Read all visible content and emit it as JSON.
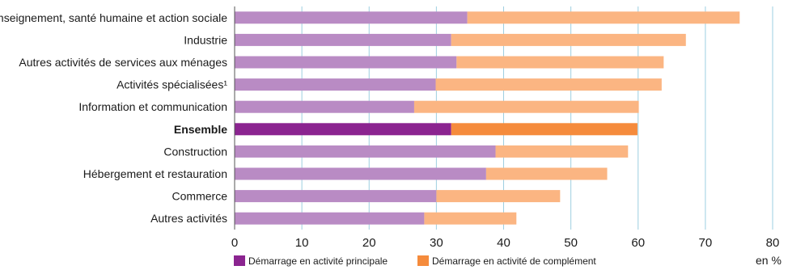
{
  "chart_data": {
    "type": "bar",
    "orientation": "horizontal",
    "stacked": true,
    "categories": [
      "Enseignement, santé humaine et action sociale",
      "Industrie",
      "Autres activités de services aux ménages",
      "Activités spécialisées¹",
      "Information et communication",
      "Ensemble",
      "Construction",
      "Hébergement et restauration",
      "Commerce",
      "Autres activités"
    ],
    "highlight_category": "Ensemble",
    "series": [
      {
        "name": "Démarrage en activité principale",
        "values": [
          34.6,
          32.2,
          33.0,
          29.9,
          26.7,
          32.2,
          38.8,
          37.4,
          30.0,
          28.2
        ],
        "color": "#b98bc4",
        "highlight_color": "#8b2490"
      },
      {
        "name": "Démarrage en activité de complément",
        "values": [
          40.5,
          34.9,
          30.8,
          33.6,
          33.4,
          27.7,
          19.7,
          18.0,
          18.4,
          13.7
        ],
        "color": "#fbb582",
        "highlight_color": "#f58b3c"
      }
    ],
    "xlim": [
      0,
      80
    ],
    "xticks": [
      0,
      10,
      20,
      30,
      40,
      50,
      60,
      70,
      80
    ],
    "unit_label": "en %",
    "grid": true,
    "grid_color": "#9ecfe0",
    "legend_position": "bottom"
  }
}
